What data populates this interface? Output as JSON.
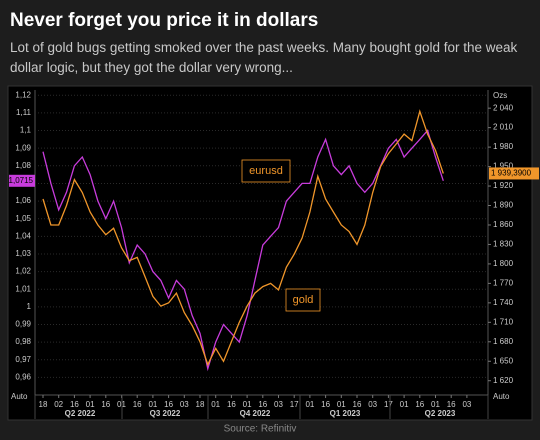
{
  "title": "Never forget you price it in dollars",
  "subtitle": "Lot of gold bugs getting smoked over the past weeks. Many bought gold for the weak dollar logic, but they got the dollar very wrong...",
  "source": "Source: Refinitiv",
  "chart_data": {
    "type": "line",
    "categories": [
      "18",
      null,
      "02",
      null,
      "16",
      null,
      "01",
      null,
      "16",
      null,
      "01",
      null,
      "16",
      null,
      "01",
      null,
      "16",
      null,
      "03",
      null,
      "18",
      null,
      "01",
      null,
      "16",
      null,
      "01",
      null,
      "16",
      null,
      "03",
      null,
      "17",
      null,
      "01",
      null,
      "16",
      null,
      "01",
      null,
      "16",
      null,
      "03",
      null,
      "17",
      null,
      "01",
      null,
      "16",
      null,
      "01",
      null,
      "16",
      null,
      "03",
      null
    ],
    "periods": [
      "Q2 2022",
      "Q3 2022",
      "Q4 2022",
      "Q1 2023",
      "Q2 2023"
    ],
    "series": [
      {
        "name": "eurusd",
        "color": "#c83cdc",
        "values": [
          1.088,
          1.07,
          1.055,
          1.065,
          1.08,
          1.085,
          1.075,
          1.06,
          1.05,
          1.06,
          1.045,
          1.025,
          1.035,
          1.03,
          1.02,
          1.015,
          1.005,
          1.015,
          1.01,
          0.995,
          0.985,
          0.965,
          0.98,
          0.99,
          0.985,
          0.98,
          0.995,
          1.015,
          1.035,
          1.04,
          1.045,
          1.06,
          1.065,
          1.07,
          1.07,
          1.085,
          1.095,
          1.08,
          1.075,
          1.08,
          1.07,
          1.065,
          1.07,
          1.08,
          1.09,
          1.095,
          1.085,
          1.09,
          1.095,
          1.1,
          1.085,
          1.0715,
          null,
          null,
          null,
          null
        ],
        "value_labels": [
          null,
          null,
          null,
          null,
          null,
          null,
          null,
          null,
          null,
          null,
          null,
          null,
          null,
          null,
          null,
          null,
          null,
          null,
          null,
          null,
          null,
          null,
          null,
          null,
          null,
          null,
          null,
          null,
          null,
          null,
          null,
          null,
          null,
          null,
          null,
          null,
          null,
          null,
          null,
          null,
          null,
          null,
          null,
          null,
          null,
          null,
          null,
          null,
          null,
          null,
          null,
          "1,0715",
          null,
          null,
          null,
          null
        ]
      },
      {
        "name": "gold",
        "color": "#f0962a",
        "axis": "y2",
        "values": [
          1900,
          1860,
          1860,
          1890,
          1930,
          1910,
          1880,
          1860,
          1845,
          1855,
          1825,
          1805,
          1810,
          1780,
          1750,
          1735,
          1740,
          1755,
          1725,
          1705,
          1680,
          1645,
          1670,
          1650,
          1680,
          1710,
          1735,
          1755,
          1765,
          1770,
          1760,
          1795,
          1815,
          1840,
          1880,
          1935,
          1900,
          1880,
          1860,
          1850,
          1830,
          1860,
          1910,
          1950,
          1970,
          1985,
          2000,
          1990,
          2035,
          2000,
          1975,
          1939.39,
          null,
          null,
          null,
          null
        ],
        "value_labels": [
          null,
          null,
          null,
          null,
          null,
          null,
          null,
          null,
          null,
          null,
          null,
          null,
          null,
          null,
          null,
          null,
          null,
          null,
          null,
          null,
          null,
          null,
          null,
          null,
          null,
          null,
          null,
          null,
          null,
          null,
          null,
          null,
          null,
          null,
          null,
          null,
          null,
          null,
          null,
          null,
          null,
          null,
          null,
          null,
          null,
          null,
          null,
          null,
          null,
          null,
          null,
          "1 939,3900",
          null,
          null,
          null,
          null
        ]
      }
    ],
    "ylim": [
      0.95,
      1.123
    ],
    "yticks": [
      {
        "value": 0.96,
        "label": "0,96"
      },
      {
        "value": 0.97,
        "label": "0,97"
      },
      {
        "value": 0.98,
        "label": "0,98"
      },
      {
        "value": 0.99,
        "label": "0,99"
      },
      1,
      {
        "value": 1.01,
        "label": "1,01"
      },
      {
        "value": 1.02,
        "label": "1,02"
      },
      {
        "value": 1.03,
        "label": "1,03"
      },
      {
        "value": 1.04,
        "label": "1,04"
      },
      {
        "value": 1.05,
        "label": "1,05"
      },
      {
        "value": 1.06,
        "label": "1,06"
      },
      {
        "value": 1.07,
        "label": "1,07"
      },
      {
        "value": 1.08,
        "label": "1,08"
      },
      {
        "value": 1.09,
        "label": "1,09"
      },
      {
        "value": 1.1,
        "label": "1,1"
      },
      {
        "value": 1.11,
        "label": "1,11"
      },
      {
        "value": 1.12,
        "label": "1,12"
      }
    ],
    "y2lim": [
      1598,
      2068
    ],
    "y2ticks": [
      {
        "value": 1620,
        "label": "1 620"
      },
      {
        "value": 1650,
        "label": "1 650"
      },
      {
        "value": 1680,
        "label": "1 680"
      },
      {
        "value": 1710,
        "label": "1 710"
      },
      {
        "value": 1740,
        "label": "1 740"
      },
      {
        "value": 1770,
        "label": "1 770"
      },
      {
        "value": 1800,
        "label": "1 800"
      },
      {
        "value": 1830,
        "label": "1 830"
      },
      {
        "value": 1860,
        "label": "1 860"
      },
      {
        "value": 1890,
        "label": "1 890"
      },
      {
        "value": 1920,
        "label": "1 920"
      },
      {
        "value": 1950,
        "label": "1 950"
      },
      {
        "value": 1980,
        "label": "1 980"
      },
      {
        "value": 2010,
        "label": "2 010"
      },
      {
        "value": 2040,
        "label": "2 040"
      }
    ],
    "y2label": "Ozs",
    "scale_mode": "Auto",
    "grid": true
  }
}
